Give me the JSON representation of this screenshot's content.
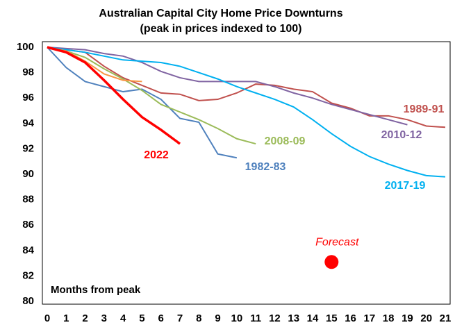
{
  "chart_data": {
    "type": "line",
    "title": "Australian Capital City Home Price Downturns",
    "subtitle": "(peak in prices indexed to 100)",
    "x_label": "Months from peak",
    "x": [
      0,
      1,
      2,
      3,
      4,
      5,
      6,
      7,
      8,
      9,
      10,
      11,
      12,
      13,
      14,
      15,
      16,
      17,
      18,
      19,
      20,
      21
    ],
    "xlim": [
      0,
      21
    ],
    "xticks": [
      0,
      1,
      2,
      3,
      4,
      5,
      6,
      7,
      8,
      9,
      10,
      11,
      12,
      13,
      14,
      15,
      16,
      17,
      18,
      19,
      20,
      21
    ],
    "ylim": [
      80,
      100
    ],
    "yticks": [
      80,
      82,
      84,
      86,
      88,
      90,
      92,
      94,
      96,
      98,
      100
    ],
    "grid": false,
    "series": [
      {
        "name": "1989-91",
        "color": "#c0504d",
        "values": [
          100,
          99.8,
          99.6,
          98.5,
          97.6,
          97.0,
          96.4,
          96.3,
          95.8,
          95.9,
          96.4,
          97.1,
          97.0,
          96.7,
          96.5,
          95.6,
          95.2,
          94.6,
          94.6,
          94.3,
          93.8,
          93.7
        ]
      },
      {
        "name": "2010-12",
        "color": "#8064a2",
        "values": [
          100,
          99.9,
          99.8,
          99.5,
          99.3,
          98.8,
          98.1,
          97.6,
          97.3,
          97.3,
          97.3,
          97.3,
          96.9,
          96.4,
          96.0,
          95.5,
          95.1,
          94.7,
          94.3,
          93.9,
          null,
          null
        ]
      },
      {
        "name": "2017-19",
        "color": "#00b0f0",
        "values": [
          100,
          99.8,
          99.6,
          99.3,
          99.0,
          98.9,
          98.8,
          98.5,
          98.0,
          97.5,
          96.9,
          96.4,
          95.9,
          95.3,
          94.3,
          93.2,
          92.2,
          91.4,
          90.8,
          90.3,
          89.9,
          89.8
        ]
      },
      {
        "name": "1982-83",
        "color": "#4f81bd",
        "values": [
          100,
          98.4,
          97.3,
          96.9,
          96.5,
          96.7,
          95.9,
          94.4,
          94.1,
          91.6,
          91.3,
          null,
          null,
          null,
          null,
          null,
          null,
          null,
          null,
          null,
          null,
          null
        ]
      },
      {
        "name": "2008-09",
        "color": "#9bbb59",
        "values": [
          100,
          99.7,
          99.2,
          98.3,
          97.5,
          96.6,
          95.5,
          94.9,
          94.3,
          93.6,
          92.8,
          92.4,
          null,
          null,
          null,
          null,
          null,
          null,
          null,
          null,
          null,
          null
        ]
      },
      {
        "name": null,
        "color": "#f79646",
        "values": [
          100,
          99.7,
          98.9,
          97.9,
          97.4,
          97.3,
          null,
          null,
          null,
          null,
          null,
          null,
          null,
          null,
          null,
          null,
          null,
          null,
          null,
          null,
          null,
          null
        ]
      },
      {
        "name": "2022",
        "color": "#ff0000",
        "values": [
          100,
          99.6,
          98.8,
          97.4,
          95.9,
          94.5,
          93.5,
          92.4,
          null,
          null,
          null,
          null,
          null,
          null,
          null,
          null,
          null,
          null,
          null,
          null,
          null,
          null
        ]
      }
    ],
    "forecast": {
      "label": "Forecast",
      "x": 15,
      "y": 83.1,
      "color": "#ff0000"
    }
  }
}
